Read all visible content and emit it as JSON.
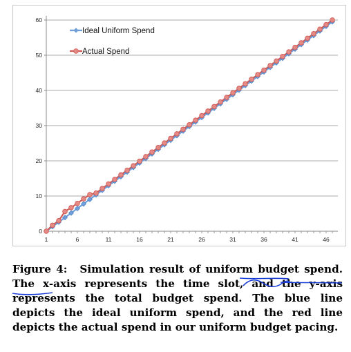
{
  "chart_data": {
    "type": "line",
    "title": "",
    "xlabel": "",
    "ylabel": "",
    "xlim": [
      1,
      47
    ],
    "ylim": [
      0,
      60
    ],
    "x_ticks": [
      "1",
      "6",
      "11",
      "16",
      "21",
      "26",
      "31",
      "36",
      "41",
      "46"
    ],
    "y_ticks": [
      "0",
      "10",
      "20",
      "30",
      "40",
      "50",
      "60"
    ],
    "grid": "horizontal",
    "legend_position": "top-left",
    "series": [
      {
        "name": "Ideal Uniform Spend",
        "color": "#6f9ed8",
        "x_start": 1,
        "x_end": 47,
        "y_start": 0,
        "y_end": 59.5,
        "n_points": 47
      },
      {
        "name": "Actual Spend",
        "color": "#d05a55",
        "x": [
          1,
          2,
          3,
          4,
          5,
          6,
          7,
          8
        ],
        "y": [
          0,
          1.7,
          3.0,
          5.6,
          6.7,
          7.9,
          9.2,
          10.4
        ],
        "then_matches_ideal_plus": 0.5
      }
    ]
  },
  "caption": {
    "label": "Figure 4:",
    "text": "Simulation result of uniform budget spend. The x-axis represents the time slot, and the y-axis represents the total budget spend. The blue line depicts the ideal uniform spend, and the red line depicts the actual spend in our uniform budget pacing."
  },
  "annotation": {
    "stroke_color": "#1b3fd6"
  }
}
